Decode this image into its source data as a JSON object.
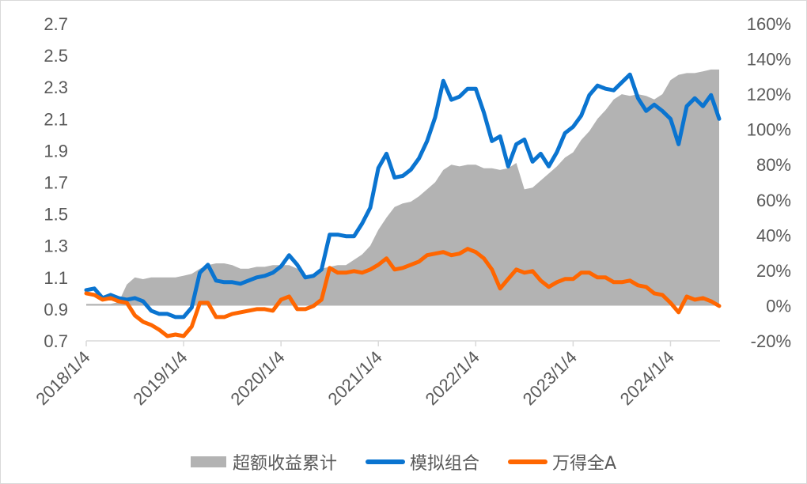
{
  "chart_data": {
    "type": "line",
    "x_tick_labels": [
      "2018/1/4",
      "2019/1/4",
      "2020/1/4",
      "2021/1/4",
      "2022/1/4",
      "2023/1/4",
      "2024/1/4"
    ],
    "y_left": {
      "ticks": [
        "0.7",
        "0.9",
        "1.1",
        "1.3",
        "1.5",
        "1.7",
        "1.9",
        "2.1",
        "2.3",
        "2.5",
        "2.7"
      ],
      "range": [
        0.7,
        2.7
      ]
    },
    "y_right": {
      "ticks": [
        "-20%",
        "0%",
        "20%",
        "40%",
        "60%",
        "80%",
        "100%",
        "120%",
        "140%",
        "160%"
      ],
      "range": [
        -20,
        160
      ]
    },
    "grid": false,
    "legend_position": "bottom",
    "dates": [
      "2018-01",
      "2018-02",
      "2018-03",
      "2018-04",
      "2018-05",
      "2018-06",
      "2018-07",
      "2018-08",
      "2018-09",
      "2018-10",
      "2018-11",
      "2018-12",
      "2019-01",
      "2019-02",
      "2019-03",
      "2019-04",
      "2019-05",
      "2019-06",
      "2019-07",
      "2019-08",
      "2019-09",
      "2019-10",
      "2019-11",
      "2019-12",
      "2020-01",
      "2020-02",
      "2020-03",
      "2020-04",
      "2020-05",
      "2020-06",
      "2020-07",
      "2020-08",
      "2020-09",
      "2020-10",
      "2020-11",
      "2020-12",
      "2021-01",
      "2021-02",
      "2021-03",
      "2021-04",
      "2021-05",
      "2021-06",
      "2021-07",
      "2021-08",
      "2021-09",
      "2021-10",
      "2021-11",
      "2021-12",
      "2022-01",
      "2022-02",
      "2022-03",
      "2022-04",
      "2022-05",
      "2022-06",
      "2022-07",
      "2022-08",
      "2022-09",
      "2022-10",
      "2022-11",
      "2022-12",
      "2023-01",
      "2023-02",
      "2023-03",
      "2023-04",
      "2023-05",
      "2023-06",
      "2023-07",
      "2023-08",
      "2023-09",
      "2023-10",
      "2023-11",
      "2023-12",
      "2024-01",
      "2024-02",
      "2024-03",
      "2024-04",
      "2024-05",
      "2024-06",
      "2024-07"
    ],
    "series": [
      {
        "name": "超额收益累计",
        "type": "area",
        "axis": "right",
        "color": "#b3b3b3",
        "values": [
          1,
          1,
          1,
          1,
          2,
          12,
          16,
          15,
          16,
          16,
          16,
          16,
          17,
          18,
          21,
          23,
          24,
          24,
          23,
          21,
          21,
          22,
          22,
          23,
          23,
          23,
          21,
          17,
          18,
          21,
          22,
          23,
          23,
          26,
          29,
          34,
          43,
          50,
          56,
          58,
          59,
          62,
          66,
          70,
          77,
          80,
          79,
          80,
          80,
          78,
          78,
          77,
          78,
          81,
          66,
          67,
          71,
          75,
          79,
          84,
          87,
          94,
          99,
          106,
          111,
          117,
          120,
          119,
          120,
          119,
          117,
          120,
          128,
          131,
          132,
          132,
          133,
          134,
          134
        ]
      },
      {
        "name": "模拟组合",
        "type": "line",
        "axis": "left",
        "color": "#0a74d0",
        "values": [
          1.02,
          1.03,
          0.97,
          0.99,
          0.97,
          0.96,
          0.97,
          0.95,
          0.89,
          0.87,
          0.87,
          0.85,
          0.85,
          0.91,
          1.13,
          1.18,
          1.08,
          1.07,
          1.07,
          1.06,
          1.08,
          1.1,
          1.11,
          1.13,
          1.17,
          1.24,
          1.18,
          1.1,
          1.11,
          1.15,
          1.37,
          1.37,
          1.36,
          1.36,
          1.44,
          1.54,
          1.79,
          1.88,
          1.73,
          1.74,
          1.78,
          1.85,
          1.96,
          2.11,
          2.34,
          2.22,
          2.24,
          2.29,
          2.29,
          2.14,
          1.96,
          1.99,
          1.8,
          1.94,
          1.97,
          1.83,
          1.88,
          1.8,
          1.89,
          2.01,
          2.05,
          2.12,
          2.25,
          2.31,
          2.29,
          2.28,
          2.33,
          2.38,
          2.23,
          2.15,
          2.19,
          2.15,
          2.1,
          1.94,
          2.18,
          2.23,
          2.18,
          2.25,
          2.1
        ]
      },
      {
        "name": "万得全A",
        "type": "line",
        "axis": "left",
        "color": "#ff6600",
        "values": [
          1.0,
          0.99,
          0.96,
          0.97,
          0.95,
          0.94,
          0.86,
          0.82,
          0.8,
          0.77,
          0.73,
          0.74,
          0.73,
          0.79,
          0.94,
          0.94,
          0.85,
          0.85,
          0.87,
          0.88,
          0.89,
          0.9,
          0.9,
          0.89,
          0.96,
          0.98,
          0.9,
          0.9,
          0.92,
          0.96,
          1.16,
          1.13,
          1.13,
          1.14,
          1.13,
          1.15,
          1.18,
          1.22,
          1.15,
          1.16,
          1.18,
          1.2,
          1.24,
          1.25,
          1.26,
          1.24,
          1.25,
          1.28,
          1.26,
          1.22,
          1.15,
          1.03,
          1.09,
          1.15,
          1.13,
          1.14,
          1.08,
          1.04,
          1.07,
          1.09,
          1.09,
          1.13,
          1.13,
          1.1,
          1.1,
          1.07,
          1.07,
          1.08,
          1.05,
          1.04,
          1.0,
          0.99,
          0.94,
          0.88,
          0.98,
          0.96,
          0.97,
          0.95,
          0.92
        ]
      }
    ]
  }
}
